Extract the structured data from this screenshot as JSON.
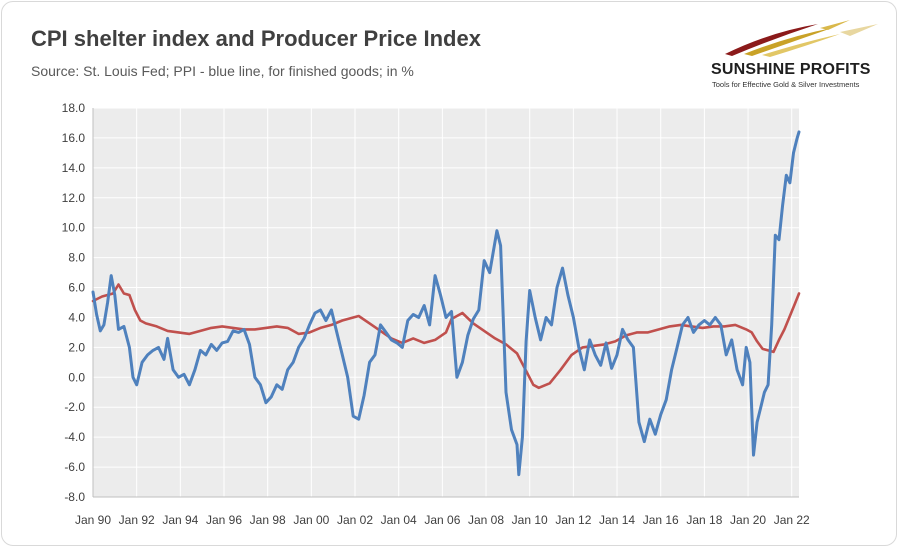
{
  "page": {
    "title": "CPI shelter index and Producer Price Index",
    "subtitle": "Source: St. Louis Fed; PPI - blue line, for finished goods; in %"
  },
  "logo": {
    "name": "SUNSHINE PROFITS",
    "tagline": "Tools for Effective Gold & Silver Investments",
    "colors": [
      "#8b1a1a",
      "#c9a227",
      "#2f2f2f"
    ]
  },
  "chart_data": {
    "type": "line",
    "x_range": [
      "1990-01",
      "2022-05"
    ],
    "ylim": [
      -8,
      18
    ],
    "y_ticks": [
      "18.0",
      "16.0",
      "14.0",
      "12.0",
      "10.0",
      "8.0",
      "6.0",
      "4.0",
      "2.0",
      "0.0",
      "-2.0",
      "-4.0",
      "-6.0",
      "-8.0"
    ],
    "x_ticks": [
      "Jan 90",
      "Jan 92",
      "Jan 94",
      "Jan 96",
      "Jan 98",
      "Jan 00",
      "Jan 02",
      "Jan 04",
      "Jan 06",
      "Jan 08",
      "Jan 10",
      "Jan 12",
      "Jan 14",
      "Jan 16",
      "Jan 18",
      "Jan 20",
      "Jan 22"
    ],
    "grid": true,
    "legend": "none",
    "series": [
      {
        "color": "#c0504d",
        "points": [
          [
            "1990-01",
            5.1
          ],
          [
            "1990-06",
            5.4
          ],
          [
            "1990-12",
            5.6
          ],
          [
            "1991-03",
            6.2
          ],
          [
            "1991-06",
            5.6
          ],
          [
            "1991-09",
            5.5
          ],
          [
            "1991-12",
            4.5
          ],
          [
            "1992-03",
            3.8
          ],
          [
            "1992-06",
            3.6
          ],
          [
            "1992-12",
            3.4
          ],
          [
            "1993-06",
            3.1
          ],
          [
            "1993-12",
            3.0
          ],
          [
            "1994-06",
            2.9
          ],
          [
            "1994-12",
            3.1
          ],
          [
            "1995-06",
            3.3
          ],
          [
            "1995-12",
            3.4
          ],
          [
            "1996-06",
            3.3
          ],
          [
            "1996-12",
            3.2
          ],
          [
            "1997-06",
            3.2
          ],
          [
            "1997-12",
            3.3
          ],
          [
            "1998-06",
            3.4
          ],
          [
            "1998-12",
            3.3
          ],
          [
            "1999-06",
            2.9
          ],
          [
            "1999-12",
            3.0
          ],
          [
            "2000-06",
            3.3
          ],
          [
            "2000-12",
            3.5
          ],
          [
            "2001-06",
            3.8
          ],
          [
            "2001-12",
            4.0
          ],
          [
            "2002-03",
            4.1
          ],
          [
            "2002-09",
            3.6
          ],
          [
            "2003-03",
            3.1
          ],
          [
            "2003-09",
            2.6
          ],
          [
            "2004-03",
            2.3
          ],
          [
            "2004-09",
            2.6
          ],
          [
            "2005-03",
            2.3
          ],
          [
            "2005-09",
            2.5
          ],
          [
            "2006-03",
            3.0
          ],
          [
            "2006-06",
            3.9
          ],
          [
            "2006-12",
            4.3
          ],
          [
            "2007-06",
            3.6
          ],
          [
            "2007-12",
            3.1
          ],
          [
            "2008-06",
            2.6
          ],
          [
            "2008-12",
            2.2
          ],
          [
            "2009-06",
            1.6
          ],
          [
            "2009-09",
            0.9
          ],
          [
            "2009-12",
            0.2
          ],
          [
            "2010-03",
            -0.5
          ],
          [
            "2010-06",
            -0.7
          ],
          [
            "2010-12",
            -0.4
          ],
          [
            "2011-06",
            0.5
          ],
          [
            "2011-12",
            1.5
          ],
          [
            "2012-06",
            2.0
          ],
          [
            "2012-12",
            2.1
          ],
          [
            "2013-06",
            2.2
          ],
          [
            "2013-12",
            2.4
          ],
          [
            "2014-06",
            2.8
          ],
          [
            "2014-12",
            3.0
          ],
          [
            "2015-06",
            3.0
          ],
          [
            "2015-12",
            3.2
          ],
          [
            "2016-06",
            3.4
          ],
          [
            "2016-12",
            3.5
          ],
          [
            "2017-06",
            3.4
          ],
          [
            "2017-12",
            3.3
          ],
          [
            "2018-06",
            3.4
          ],
          [
            "2018-12",
            3.4
          ],
          [
            "2019-06",
            3.5
          ],
          [
            "2019-12",
            3.2
          ],
          [
            "2020-03",
            3.0
          ],
          [
            "2020-06",
            2.4
          ],
          [
            "2020-09",
            1.9
          ],
          [
            "2020-12",
            1.8
          ],
          [
            "2021-03",
            1.7
          ],
          [
            "2021-06",
            2.5
          ],
          [
            "2021-09",
            3.2
          ],
          [
            "2021-12",
            4.1
          ],
          [
            "2022-03",
            5.0
          ],
          [
            "2022-05",
            5.6
          ]
        ]
      },
      {
        "color": "#4f81bd",
        "points": [
          [
            "1990-01",
            5.7
          ],
          [
            "1990-03",
            4.2
          ],
          [
            "1990-05",
            3.1
          ],
          [
            "1990-07",
            3.5
          ],
          [
            "1990-09",
            5.0
          ],
          [
            "1990-11",
            6.8
          ],
          [
            "1991-01",
            5.5
          ],
          [
            "1991-03",
            3.2
          ],
          [
            "1991-06",
            3.4
          ],
          [
            "1991-09",
            2.0
          ],
          [
            "1991-11",
            0.0
          ],
          [
            "1992-01",
            -0.5
          ],
          [
            "1992-04",
            1.0
          ],
          [
            "1992-07",
            1.5
          ],
          [
            "1992-10",
            1.8
          ],
          [
            "1993-01",
            2.0
          ],
          [
            "1993-04",
            1.2
          ],
          [
            "1993-06",
            2.6
          ],
          [
            "1993-09",
            0.5
          ],
          [
            "1993-12",
            0.0
          ],
          [
            "1994-03",
            0.2
          ],
          [
            "1994-06",
            -0.5
          ],
          [
            "1994-09",
            0.5
          ],
          [
            "1994-12",
            1.8
          ],
          [
            "1995-03",
            1.5
          ],
          [
            "1995-06",
            2.2
          ],
          [
            "1995-09",
            1.8
          ],
          [
            "1995-12",
            2.3
          ],
          [
            "1996-03",
            2.4
          ],
          [
            "1996-06",
            3.1
          ],
          [
            "1996-09",
            3.0
          ],
          [
            "1996-12",
            3.2
          ],
          [
            "1997-03",
            2.2
          ],
          [
            "1997-06",
            0.0
          ],
          [
            "1997-09",
            -0.5
          ],
          [
            "1997-12",
            -1.7
          ],
          [
            "1998-03",
            -1.3
          ],
          [
            "1998-06",
            -0.5
          ],
          [
            "1998-09",
            -0.8
          ],
          [
            "1998-12",
            0.5
          ],
          [
            "1999-03",
            1.0
          ],
          [
            "1999-06",
            2.0
          ],
          [
            "1999-09",
            2.6
          ],
          [
            "1999-12",
            3.5
          ],
          [
            "2000-03",
            4.3
          ],
          [
            "2000-06",
            4.5
          ],
          [
            "2000-09",
            3.8
          ],
          [
            "2000-12",
            4.5
          ],
          [
            "2001-03",
            3.0
          ],
          [
            "2001-06",
            1.5
          ],
          [
            "2001-09",
            0.0
          ],
          [
            "2001-12",
            -2.6
          ],
          [
            "2002-03",
            -2.8
          ],
          [
            "2002-06",
            -1.2
          ],
          [
            "2002-09",
            1.0
          ],
          [
            "2002-12",
            1.5
          ],
          [
            "2003-03",
            3.5
          ],
          [
            "2003-06",
            3.0
          ],
          [
            "2003-09",
            2.5
          ],
          [
            "2003-12",
            2.3
          ],
          [
            "2004-03",
            2.0
          ],
          [
            "2004-06",
            3.8
          ],
          [
            "2004-09",
            4.2
          ],
          [
            "2004-12",
            4.0
          ],
          [
            "2005-03",
            4.8
          ],
          [
            "2005-06",
            3.5
          ],
          [
            "2005-09",
            6.8
          ],
          [
            "2005-12",
            5.5
          ],
          [
            "2006-03",
            4.0
          ],
          [
            "2006-06",
            4.4
          ],
          [
            "2006-09",
            0.0
          ],
          [
            "2006-12",
            1.0
          ],
          [
            "2007-03",
            2.8
          ],
          [
            "2007-06",
            3.9
          ],
          [
            "2007-09",
            4.5
          ],
          [
            "2007-12",
            7.8
          ],
          [
            "2008-03",
            7.0
          ],
          [
            "2008-07",
            9.8
          ],
          [
            "2008-09",
            8.8
          ],
          [
            "2008-12",
            -1.0
          ],
          [
            "2009-03",
            -3.5
          ],
          [
            "2009-06",
            -4.5
          ],
          [
            "2009-07",
            -6.5
          ],
          [
            "2009-09",
            -4.0
          ],
          [
            "2009-11",
            2.4
          ],
          [
            "2010-01",
            5.8
          ],
          [
            "2010-04",
            4.0
          ],
          [
            "2010-07",
            2.5
          ],
          [
            "2010-10",
            4.0
          ],
          [
            "2011-01",
            3.5
          ],
          [
            "2011-04",
            6.0
          ],
          [
            "2011-07",
            7.3
          ],
          [
            "2011-10",
            5.5
          ],
          [
            "2012-01",
            4.0
          ],
          [
            "2012-04",
            2.0
          ],
          [
            "2012-07",
            0.5
          ],
          [
            "2012-10",
            2.5
          ],
          [
            "2013-01",
            1.5
          ],
          [
            "2013-04",
            0.8
          ],
          [
            "2013-07",
            2.3
          ],
          [
            "2013-10",
            0.6
          ],
          [
            "2014-01",
            1.5
          ],
          [
            "2014-04",
            3.2
          ],
          [
            "2014-07",
            2.5
          ],
          [
            "2014-10",
            2.0
          ],
          [
            "2015-01",
            -3.0
          ],
          [
            "2015-04",
            -4.3
          ],
          [
            "2015-07",
            -2.8
          ],
          [
            "2015-10",
            -3.8
          ],
          [
            "2016-01",
            -2.5
          ],
          [
            "2016-04",
            -1.5
          ],
          [
            "2016-07",
            0.5
          ],
          [
            "2016-10",
            2.0
          ],
          [
            "2017-01",
            3.5
          ],
          [
            "2017-04",
            4.0
          ],
          [
            "2017-07",
            3.0
          ],
          [
            "2017-10",
            3.5
          ],
          [
            "2018-01",
            3.8
          ],
          [
            "2018-04",
            3.5
          ],
          [
            "2018-07",
            4.0
          ],
          [
            "2018-10",
            3.5
          ],
          [
            "2019-01",
            1.5
          ],
          [
            "2019-04",
            2.5
          ],
          [
            "2019-07",
            0.5
          ],
          [
            "2019-10",
            -0.5
          ],
          [
            "2019-12",
            2.0
          ],
          [
            "2020-02",
            1.0
          ],
          [
            "2020-04",
            -5.2
          ],
          [
            "2020-06",
            -3.0
          ],
          [
            "2020-08",
            -2.0
          ],
          [
            "2020-10",
            -1.0
          ],
          [
            "2020-12",
            -0.5
          ],
          [
            "2021-02",
            3.5
          ],
          [
            "2021-04",
            9.5
          ],
          [
            "2021-06",
            9.2
          ],
          [
            "2021-08",
            11.5
          ],
          [
            "2021-10",
            13.5
          ],
          [
            "2021-12",
            13.0
          ],
          [
            "2022-02",
            15.0
          ],
          [
            "2022-04",
            16.0
          ],
          [
            "2022-05",
            16.4
          ]
        ]
      }
    ]
  }
}
